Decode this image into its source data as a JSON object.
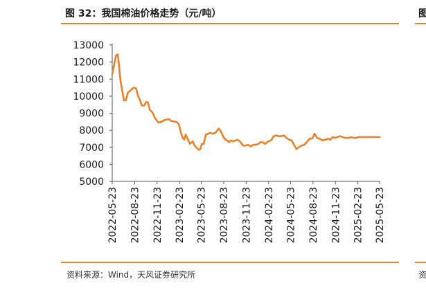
{
  "figure": {
    "title": "图 32：我国棉油价格走势（元/吨）",
    "source": "资料来源：Wind，天风证券研究所",
    "next_title_fragment": "图",
    "next_source_fragment": "资"
  },
  "colors": {
    "accent": "#e8822a",
    "line": "#e8822a"
  },
  "chart_data": {
    "type": "line",
    "title": "我国棉油价格走势（元/吨）",
    "xlabel": "",
    "ylabel": "",
    "ylim": [
      5000,
      13000
    ],
    "yticks": [
      5000,
      6000,
      7000,
      8000,
      9000,
      10000,
      11000,
      12000,
      13000
    ],
    "xlim": [
      "2022-05-23",
      "2025-05-23"
    ],
    "xticks": [
      "2022-05-23",
      "2022-08-23",
      "2022-11-23",
      "2023-02-23",
      "2023-05-23",
      "2023-08-23",
      "2023-11-23",
      "2024-02-23",
      "2024-05-23",
      "2024-08-23",
      "2024-11-23",
      "2025-02-23",
      "2025-05-23"
    ],
    "series": [
      {
        "name": "棉油价格",
        "x": [
          "2022-05-23",
          "2022-06-08",
          "2022-06-15",
          "2022-06-26",
          "2022-07-10",
          "2022-07-18",
          "2022-07-26",
          "2022-08-07",
          "2022-08-18",
          "2022-08-29",
          "2022-09-06",
          "2022-09-13",
          "2022-09-21",
          "2022-10-02",
          "2022-10-08",
          "2022-10-16",
          "2022-10-24",
          "2022-11-04",
          "2022-11-15",
          "2022-11-28",
          "2022-12-12",
          "2022-12-24",
          "2023-01-10",
          "2023-01-20",
          "2023-02-01",
          "2023-02-10",
          "2023-02-20",
          "2023-03-02",
          "2023-03-08",
          "2023-03-14",
          "2023-03-20",
          "2023-03-28",
          "2023-04-07",
          "2023-04-18",
          "2023-04-26",
          "2023-05-05",
          "2023-05-13",
          "2023-05-19",
          "2023-05-25",
          "2023-06-02",
          "2023-06-11",
          "2023-06-20",
          "2023-06-28",
          "2023-07-09",
          "2023-07-20",
          "2023-07-28",
          "2023-08-02",
          "2023-08-09",
          "2023-08-17",
          "2023-08-26",
          "2023-09-06",
          "2023-09-14",
          "2023-09-22",
          "2023-10-02",
          "2023-10-10",
          "2023-10-18",
          "2023-10-28",
          "2023-11-10",
          "2023-11-20",
          "2023-12-01",
          "2023-12-12",
          "2023-12-22",
          "2024-01-02",
          "2024-01-12",
          "2024-01-20",
          "2024-01-30",
          "2024-02-09",
          "2024-02-22",
          "2024-03-04",
          "2024-03-15",
          "2024-03-26",
          "2024-04-04",
          "2024-04-16",
          "2024-04-26",
          "2024-05-06",
          "2024-05-17",
          "2024-05-28",
          "2024-06-06",
          "2024-06-16",
          "2024-06-26",
          "2024-07-06",
          "2024-07-18",
          "2024-07-29",
          "2024-08-08",
          "2024-08-15",
          "2024-08-22",
          "2024-08-29",
          "2024-09-09",
          "2024-09-20",
          "2024-10-01",
          "2024-10-12",
          "2024-10-24",
          "2024-11-02",
          "2024-11-12",
          "2024-11-20",
          "2024-12-01",
          "2024-12-12",
          "2024-12-22",
          "2025-01-02",
          "2025-01-10",
          "2025-01-18",
          "2025-01-26",
          "2025-02-06",
          "2025-02-16",
          "2025-02-24",
          "2025-03-06",
          "2025-03-16",
          "2025-03-26",
          "2025-04-06",
          "2025-04-16",
          "2025-04-26",
          "2025-05-08",
          "2025-05-23"
        ],
        "values": [
          11300,
          12400,
          12450,
          10900,
          9750,
          9750,
          10200,
          10350,
          10500,
          10450,
          10000,
          9800,
          9450,
          9450,
          9650,
          9650,
          9200,
          9050,
          8700,
          8450,
          8500,
          8600,
          8650,
          8550,
          8500,
          8500,
          8350,
          7800,
          7550,
          7450,
          7750,
          7500,
          7200,
          7350,
          7100,
          6950,
          6850,
          6900,
          7200,
          7200,
          7750,
          7800,
          7850,
          7800,
          7850,
          8000,
          8100,
          8000,
          7750,
          7500,
          7400,
          7300,
          7400,
          7350,
          7400,
          7450,
          7350,
          7100,
          7100,
          7150,
          7050,
          7150,
          7150,
          7200,
          7300,
          7300,
          7200,
          7350,
          7400,
          7650,
          7700,
          7650,
          7650,
          7700,
          7550,
          7450,
          7400,
          7150,
          6900,
          7000,
          7100,
          7150,
          7300,
          7500,
          7500,
          7550,
          7800,
          7550,
          7500,
          7400,
          7450,
          7500,
          7450,
          7600,
          7550,
          7600,
          7650,
          7600,
          7550,
          7550,
          7550,
          7600,
          7550,
          7550,
          7600,
          7600,
          7600,
          7600,
          7600,
          7600,
          7600,
          7600,
          7600
        ]
      }
    ]
  }
}
